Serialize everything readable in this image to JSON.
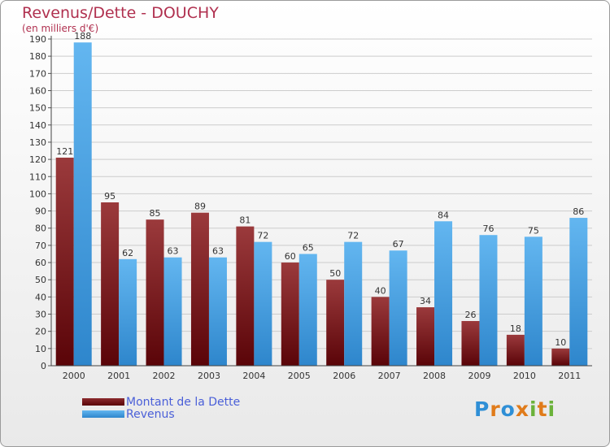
{
  "title": "Revenus/Dette - DOUCHY",
  "subtitle": "(en milliers d'€)",
  "colors": {
    "debt": "#6b0a0f",
    "debt_light": "#9b3a3c",
    "revenue": "#3e9be0",
    "revenue_light": "#63b6f0",
    "axis_text": "#333333",
    "grid": "#cccccc"
  },
  "legend": {
    "debt_label": "Montant de la Dette",
    "revenue_label": "Revenus"
  },
  "logo": {
    "letters": [
      "P",
      "r",
      "o",
      "x",
      "i",
      "t",
      "i"
    ],
    "colors": [
      "#2f8fd6",
      "#e07b1a",
      "#2f8fd6",
      "#e07b1a",
      "#6bb23a",
      "#e07b1a",
      "#6bb23a"
    ]
  },
  "chart_data": {
    "type": "bar",
    "categories": [
      "2000",
      "2001",
      "2002",
      "2003",
      "2004",
      "2005",
      "2006",
      "2007",
      "2008",
      "2009",
      "2010",
      "2011"
    ],
    "series": [
      {
        "name": "Montant de la Dette",
        "values": [
          121,
          95,
          85,
          89,
          81,
          60,
          50,
          40,
          34,
          26,
          18,
          10
        ]
      },
      {
        "name": "Revenus",
        "values": [
          188,
          62,
          63,
          63,
          72,
          65,
          72,
          67,
          84,
          76,
          75,
          86
        ]
      }
    ],
    "ylim": [
      0,
      190
    ],
    "ytick_step": 10,
    "grid": true,
    "legend_position": "bottom-left"
  }
}
